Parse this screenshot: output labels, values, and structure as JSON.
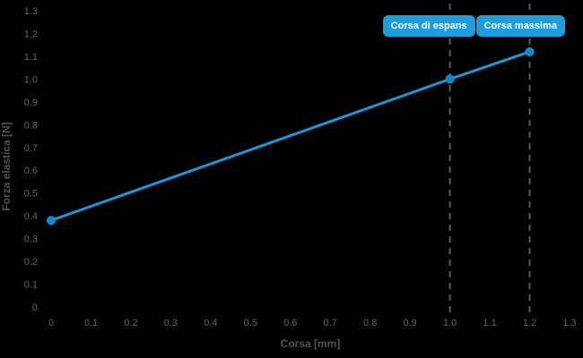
{
  "theme": {
    "background": "#000000",
    "line_color": "#1b96d9",
    "marker_fill": "#1186c9",
    "annotation_box_color": "#1d9dde",
    "annotation_text_color": "#ffffff",
    "dashed_line_color": "#5a5a5a",
    "tick_label_color": "#646464",
    "axis_label_color": "#525252"
  },
  "chart_data": {
    "type": "line",
    "title": "",
    "xlabel": "Corsa [mm]",
    "ylabel": "Forza elastica [N]",
    "x": [
      0,
      1.0,
      1.2
    ],
    "y": [
      0.38,
      1.0,
      1.12
    ],
    "xlim": [
      0,
      1.3
    ],
    "ylim": [
      0,
      1.3
    ],
    "grid": false,
    "legend": "none",
    "x_ticks": [
      "0",
      "0.1",
      "0.2",
      "0.3",
      "0.4",
      "0.5",
      "0.6",
      "0.7",
      "0.8",
      "0.9",
      "1.0",
      "1.1",
      "1.2",
      "1.3"
    ],
    "y_ticks": [
      "0",
      "0.1",
      "0.2",
      "0.3",
      "0.4",
      "0.5",
      "0.6",
      "0.7",
      "0.8",
      "0.9",
      "1.0",
      "1.1",
      "1.2",
      "1.3"
    ],
    "annotations": [
      {
        "label": "Corsa di espans",
        "x": 1.0,
        "style": "dashed-vertical-line"
      },
      {
        "label": "Corsa massima",
        "x": 1.2,
        "style": "dashed-vertical-line"
      }
    ]
  }
}
